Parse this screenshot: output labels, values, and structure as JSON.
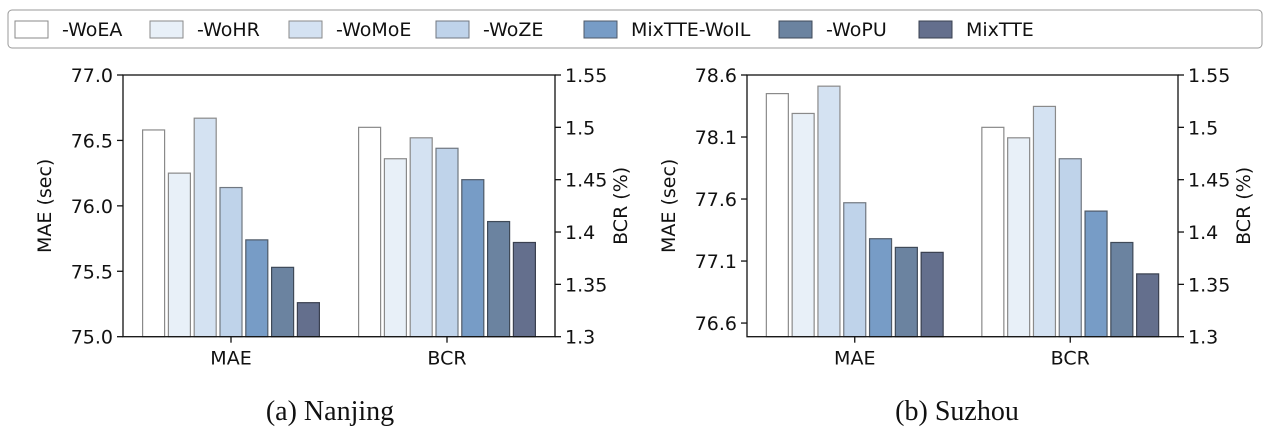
{
  "legend": [
    "-WoEA",
    "-WoHR",
    "-WoMoE",
    "-WoZE",
    "MixTTE-WoIL",
    "-WoPU",
    "MixTTE"
  ],
  "colors": [
    "#ffffff",
    "#e8f0f8",
    "#d4e2f2",
    "#bfd3ea",
    "#779cc6",
    "#6b83a0",
    "#646f8d"
  ],
  "edges": [
    "#8a8a8a",
    "#8a8a8a",
    "#8a8a8a",
    "#707780",
    "#4f5a68",
    "#3f4a58",
    "#3a4050"
  ],
  "chart_data": [
    {
      "type": "bar",
      "caption": "(a) Nanjing",
      "categories": [
        "MAE",
        "BCR"
      ],
      "ylabel": "MAE (sec)",
      "y2label": "BCR (%)",
      "ylim": [
        75.0,
        77.0
      ],
      "yticks": [
        "75.0",
        "75.5",
        "76.0",
        "76.5",
        "77.0"
      ],
      "y2lim": [
        1.3,
        1.55
      ],
      "y2ticks": [
        "1.3",
        "1.35",
        "1.4",
        "1.45",
        "1.5",
        "1.55"
      ],
      "series": [
        {
          "name": "-WoEA",
          "values": [
            76.58,
            1.5
          ]
        },
        {
          "name": "-WoHR",
          "values": [
            76.25,
            1.47
          ]
        },
        {
          "name": "-WoMoE",
          "values": [
            76.67,
            1.49
          ]
        },
        {
          "name": "-WoZE",
          "values": [
            76.14,
            1.48
          ]
        },
        {
          "name": "MixTTE-WoIL",
          "values": [
            75.74,
            1.45
          ]
        },
        {
          "name": "-WoPU",
          "values": [
            75.53,
            1.41
          ]
        },
        {
          "name": "MixTTE",
          "values": [
            75.26,
            1.39
          ]
        }
      ]
    },
    {
      "type": "bar",
      "caption": "(b) Suzhou",
      "categories": [
        "MAE",
        "BCR"
      ],
      "ylabel": "MAE (sec)",
      "y2label": "BCR (%)",
      "ylim": [
        76.49,
        78.6
      ],
      "yticks": [
        "76.6",
        "77.1",
        "77.6",
        "78.1",
        "78.6"
      ],
      "y2lim": [
        1.3,
        1.55
      ],
      "y2ticks": [
        "1.3",
        "1.35",
        "1.4",
        "1.45",
        "1.5",
        "1.55"
      ],
      "series": [
        {
          "name": "-WoEA",
          "values": [
            78.45,
            1.5
          ]
        },
        {
          "name": "-WoHR",
          "values": [
            78.29,
            1.49
          ]
        },
        {
          "name": "-WoMoE",
          "values": [
            78.51,
            1.52
          ]
        },
        {
          "name": "-WoZE",
          "values": [
            77.57,
            1.47
          ]
        },
        {
          "name": "MixTTE-WoIL",
          "values": [
            77.28,
            1.42
          ]
        },
        {
          "name": "-WoPU",
          "values": [
            77.21,
            1.39
          ]
        },
        {
          "name": "MixTTE",
          "values": [
            77.17,
            1.36
          ]
        }
      ]
    }
  ]
}
